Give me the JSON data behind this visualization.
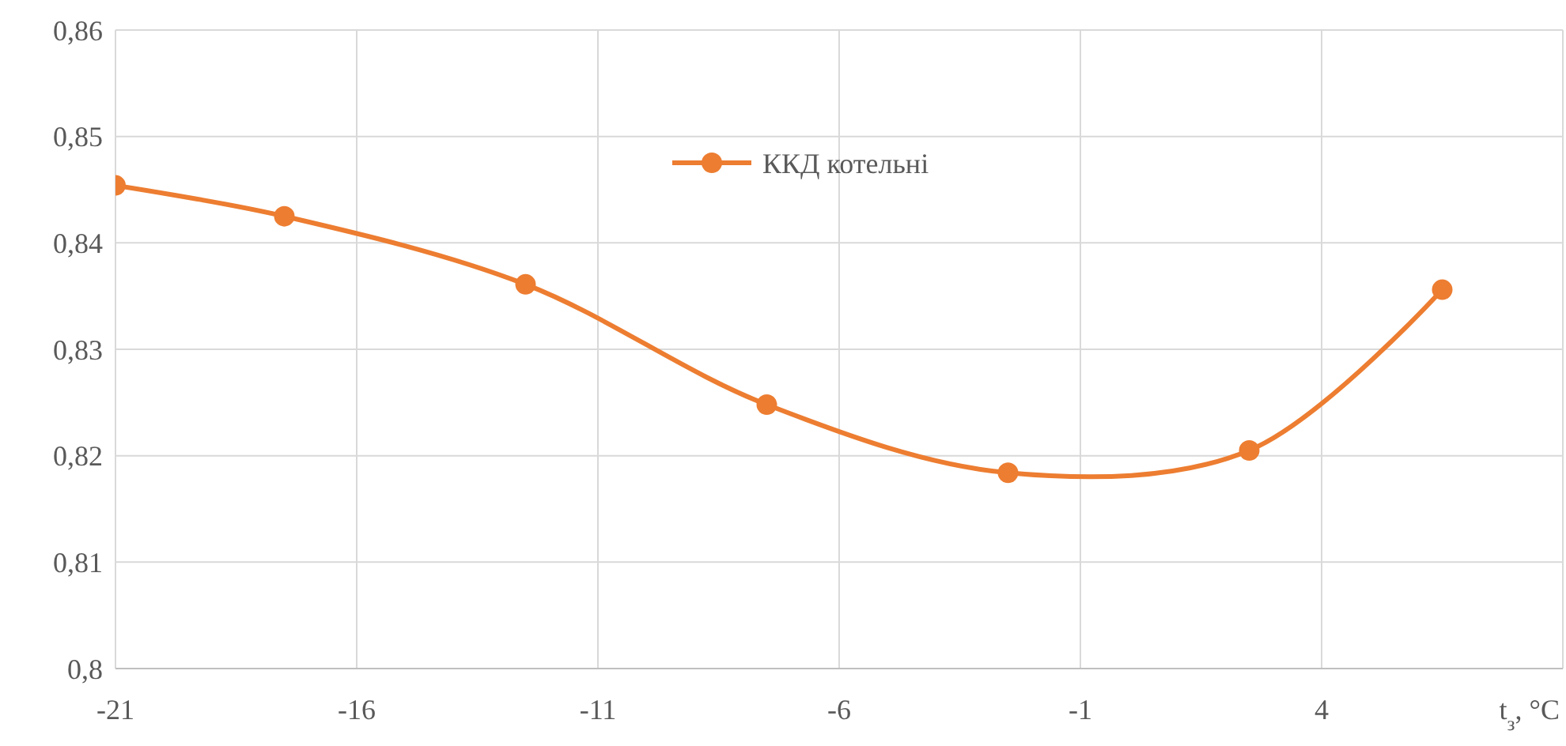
{
  "chart_data": {
    "type": "line",
    "xlabel": "t$_{з}$, °C",
    "x": [
      -21,
      -17.5,
      -12.5,
      -7.5,
      -2.5,
      2.5,
      6.5
    ],
    "series": [
      {
        "name": "ККД котельні",
        "color": "#ed7d31",
        "values": [
          0.8454,
          0.8425,
          0.8361,
          0.8248,
          0.8184,
          0.8205,
          0.8356
        ]
      }
    ],
    "xlim": [
      -21,
      9
    ],
    "xticks": [
      -21,
      -16,
      -11,
      -6,
      -1,
      4
    ],
    "ylim": [
      0.8,
      0.86
    ],
    "yticks": [
      {
        "value": 0.8,
        "label": "0,8"
      },
      {
        "value": 0.81,
        "label": "0,81"
      },
      {
        "value": 0.82,
        "label": "0,82"
      },
      {
        "value": 0.83,
        "label": "0,83"
      },
      {
        "value": 0.84,
        "label": "0,84"
      },
      {
        "value": 0.85,
        "label": "0,85"
      },
      {
        "value": 0.86,
        "label": "0,86"
      }
    ],
    "grid": true,
    "legend": "top",
    "marker": "circle",
    "line_style": "solid"
  }
}
